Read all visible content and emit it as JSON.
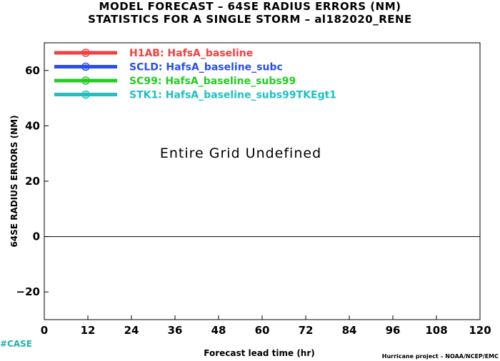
{
  "header": {
    "title_line1": "MODEL FORECAST – 64SE RADIUS ERRORS (NM)",
    "title_line2": "STATISTICS FOR A SINGLE STORM – al182020_RENE"
  },
  "chart_data": {
    "type": "line",
    "xlabel": "Forecast lead time (hr)",
    "ylabel": "64SE RADIUS ERRORS (NM)",
    "xlim": [
      0,
      120
    ],
    "ylim": [
      -30,
      70
    ],
    "x_ticks": [
      0,
      12,
      24,
      36,
      48,
      60,
      72,
      84,
      96,
      108,
      120
    ],
    "y_ticks": [
      -20,
      0,
      20,
      40,
      60
    ],
    "y_tick_labels": [
      "−20",
      "0",
      "20",
      "40",
      "60"
    ],
    "zero_line": 0,
    "grid": false,
    "legend_placement": "top-left",
    "annotation": "Entire Grid Undefined",
    "series": [
      {
        "name": "H1AB: HafsA_baseline",
        "color": "#f04040",
        "values": []
      },
      {
        "name": "SCLD: HafsA_baseline_subc",
        "color": "#2850e6",
        "values": []
      },
      {
        "name": "SC99: HafsA_baseline_subs99",
        "color": "#22cc22",
        "values": []
      },
      {
        "name": "STK1: HafsA_baseline_subs99TKEgt1",
        "color": "#20c0c0",
        "values": []
      }
    ]
  },
  "footer": {
    "case_label": "#CASE",
    "credit": "Hurricane project – NOAA/NCEP/EMC"
  }
}
